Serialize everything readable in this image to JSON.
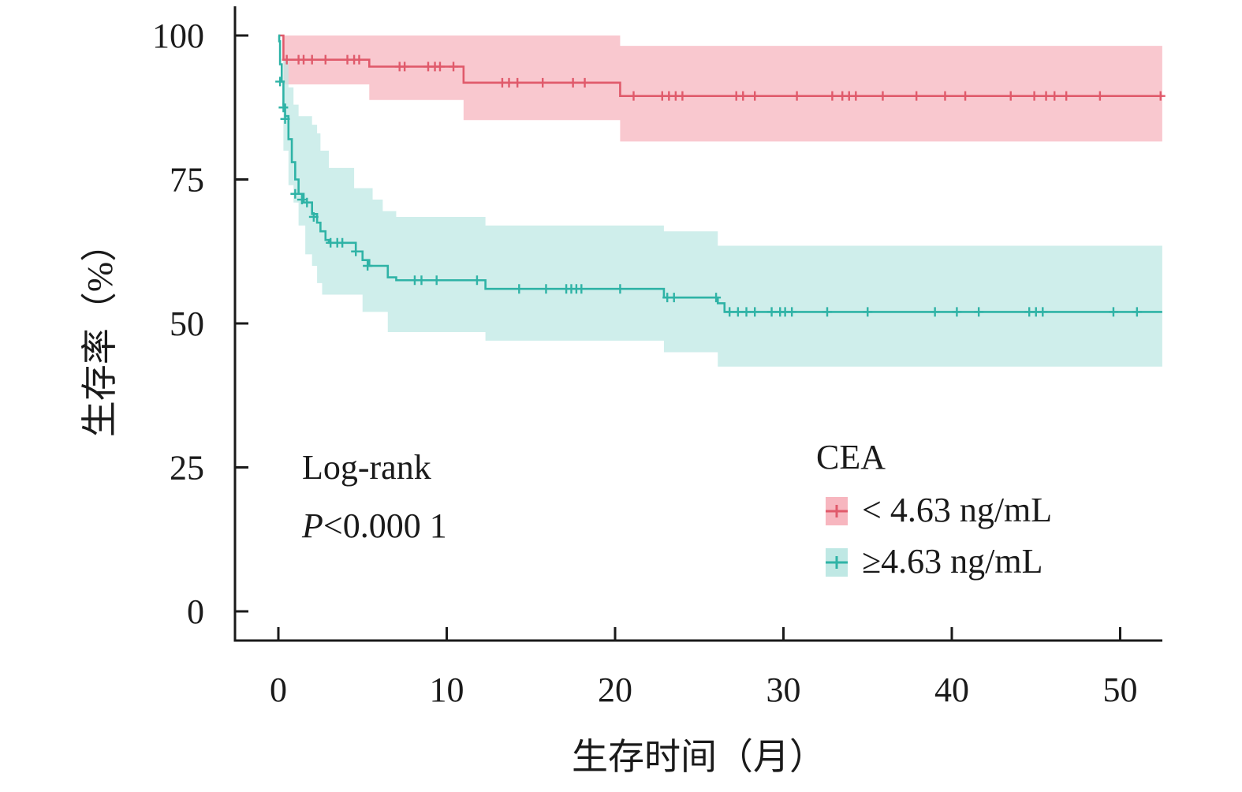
{
  "chart_data": {
    "type": "line",
    "subtype": "kaplan-meier",
    "title": "",
    "xlabel": "生存时间（月）",
    "ylabel": "生存率（%）",
    "xlim": [
      0,
      52.5
    ],
    "ylim": [
      0,
      100
    ],
    "xticks": [
      0,
      10,
      20,
      30,
      40,
      50
    ],
    "yticks": [
      0,
      25,
      50,
      75,
      100
    ],
    "grid": false,
    "legend": {
      "position": "bottom-right",
      "title": "CEA"
    },
    "annotation": {
      "line1": "Log-rank",
      "p_italic": "P",
      "p_rest": "<0.000 1"
    },
    "series": [
      {
        "name": "< 4.63 ng/mL",
        "color": "#e05a6b",
        "band_color": "#f7b6bf",
        "steps": [
          [
            0,
            100
          ],
          [
            0.3,
            95.8
          ],
          [
            5.4,
            94.6
          ],
          [
            11,
            91.8
          ],
          [
            20.3,
            89.5
          ],
          [
            52.5,
            89.5
          ]
        ],
        "ci_upper": [
          [
            0,
            100
          ],
          [
            5.4,
            100
          ],
          [
            11,
            100
          ],
          [
            20.3,
            98.2
          ],
          [
            52.5,
            98.2
          ]
        ],
        "ci_lower": [
          [
            0,
            100
          ],
          [
            0.3,
            91.5
          ],
          [
            5.4,
            88.8
          ],
          [
            11,
            85.3
          ],
          [
            20.3,
            81.6
          ],
          [
            52.5,
            81.6
          ]
        ],
        "censor": [
          [
            0.5,
            95.8
          ],
          [
            1.2,
            95.8
          ],
          [
            1.5,
            95.8
          ],
          [
            2.0,
            95.8
          ],
          [
            2.8,
            95.8
          ],
          [
            4.1,
            95.8
          ],
          [
            4.5,
            95.8
          ],
          [
            4.8,
            95.8
          ],
          [
            7.2,
            94.6
          ],
          [
            7.5,
            94.6
          ],
          [
            8.9,
            94.6
          ],
          [
            9.3,
            94.6
          ],
          [
            9.6,
            94.6
          ],
          [
            10.4,
            94.6
          ],
          [
            13.3,
            91.8
          ],
          [
            13.7,
            91.8
          ],
          [
            14.2,
            91.8
          ],
          [
            15.7,
            91.8
          ],
          [
            17.5,
            91.8
          ],
          [
            18.2,
            91.8
          ],
          [
            21.1,
            89.5
          ],
          [
            22.8,
            89.5
          ],
          [
            23.2,
            89.5
          ],
          [
            23.6,
            89.5
          ],
          [
            24.0,
            89.5
          ],
          [
            27.2,
            89.5
          ],
          [
            27.6,
            89.5
          ],
          [
            28.3,
            89.5
          ],
          [
            30.8,
            89.5
          ],
          [
            32.9,
            89.5
          ],
          [
            33.5,
            89.5
          ],
          [
            33.9,
            89.5
          ],
          [
            34.3,
            89.5
          ],
          [
            35.9,
            89.5
          ],
          [
            37.9,
            89.5
          ],
          [
            39.6,
            89.5
          ],
          [
            40.8,
            89.5
          ],
          [
            43.5,
            89.5
          ],
          [
            44.9,
            89.5
          ],
          [
            45.6,
            89.5
          ],
          [
            46.1,
            89.5
          ],
          [
            46.8,
            89.5
          ],
          [
            48.8,
            89.5
          ],
          [
            52.4,
            89.5
          ]
        ]
      },
      {
        "name": "≥4.63 ng/mL",
        "color": "#2fb3a6",
        "band_color": "#bfe8e4",
        "steps": [
          [
            0,
            100
          ],
          [
            0.05,
            99
          ],
          [
            0.1,
            95
          ],
          [
            0.2,
            92
          ],
          [
            0.3,
            88
          ],
          [
            0.4,
            86
          ],
          [
            0.6,
            82
          ],
          [
            0.8,
            78
          ],
          [
            1.0,
            75
          ],
          [
            1.2,
            72.5
          ],
          [
            1.5,
            71
          ],
          [
            2.0,
            69
          ],
          [
            2.3,
            67.5
          ],
          [
            2.5,
            66
          ],
          [
            2.8,
            64.5
          ],
          [
            3.0,
            64
          ],
          [
            4.6,
            62.5
          ],
          [
            5.0,
            61
          ],
          [
            5.4,
            60
          ],
          [
            6.5,
            58
          ],
          [
            7.0,
            57.5
          ],
          [
            8.5,
            57.5
          ],
          [
            12.3,
            56
          ],
          [
            22.9,
            54.5
          ],
          [
            26.1,
            53.5
          ],
          [
            26.5,
            52
          ],
          [
            52.5,
            52
          ]
        ],
        "ci_upper": [
          [
            0,
            100
          ],
          [
            0.3,
            96
          ],
          [
            0.6,
            91
          ],
          [
            0.9,
            88
          ],
          [
            1.2,
            86
          ],
          [
            2.0,
            84.5
          ],
          [
            2.3,
            83
          ],
          [
            2.5,
            80
          ],
          [
            3.0,
            77
          ],
          [
            4.5,
            73.5
          ],
          [
            5.6,
            71.5
          ],
          [
            6.2,
            69.5
          ],
          [
            7.0,
            68.5
          ],
          [
            12.3,
            67
          ],
          [
            22.9,
            66
          ],
          [
            26.1,
            63.5
          ],
          [
            52.5,
            63.5
          ]
        ],
        "ci_lower": [
          [
            0,
            100
          ],
          [
            0.3,
            80
          ],
          [
            0.6,
            74
          ],
          [
            0.9,
            71
          ],
          [
            1.2,
            67
          ],
          [
            1.6,
            62
          ],
          [
            2.0,
            60
          ],
          [
            2.3,
            57
          ],
          [
            2.6,
            55
          ],
          [
            3.0,
            55
          ],
          [
            5.0,
            52
          ],
          [
            6.5,
            48.5
          ],
          [
            12.3,
            47
          ],
          [
            22.9,
            45
          ],
          [
            26.1,
            42.5
          ],
          [
            52.5,
            42.5
          ]
        ],
        "censor": [
          [
            0.1,
            92
          ],
          [
            0.3,
            87.5
          ],
          [
            0.4,
            85.5
          ],
          [
            1.0,
            72.5
          ],
          [
            1.4,
            71.5
          ],
          [
            1.7,
            71
          ],
          [
            2.1,
            68.5
          ],
          [
            3.1,
            64
          ],
          [
            3.5,
            64
          ],
          [
            3.8,
            64
          ],
          [
            4.6,
            62.5
          ],
          [
            5.3,
            60
          ],
          [
            8.1,
            57.5
          ],
          [
            8.5,
            57.5
          ],
          [
            9.4,
            57.5
          ],
          [
            11.8,
            57.5
          ],
          [
            14.3,
            56
          ],
          [
            15.9,
            56
          ],
          [
            17.1,
            56
          ],
          [
            17.4,
            56
          ],
          [
            17.7,
            56
          ],
          [
            18.0,
            56
          ],
          [
            20.3,
            56
          ],
          [
            23.1,
            54.5
          ],
          [
            23.5,
            54.5
          ],
          [
            26.0,
            54.5
          ],
          [
            26.8,
            52
          ],
          [
            27.3,
            52
          ],
          [
            27.8,
            52
          ],
          [
            28.3,
            52
          ],
          [
            29.3,
            52
          ],
          [
            29.8,
            52
          ],
          [
            30.1,
            52
          ],
          [
            30.5,
            52
          ],
          [
            32.6,
            52
          ],
          [
            35.0,
            52
          ],
          [
            39.0,
            52
          ],
          [
            40.3,
            52
          ],
          [
            41.6,
            52
          ],
          [
            44.6,
            52
          ],
          [
            45.0,
            52
          ],
          [
            45.4,
            52
          ],
          [
            49.6,
            52
          ],
          [
            51.0,
            52
          ]
        ]
      }
    ]
  }
}
